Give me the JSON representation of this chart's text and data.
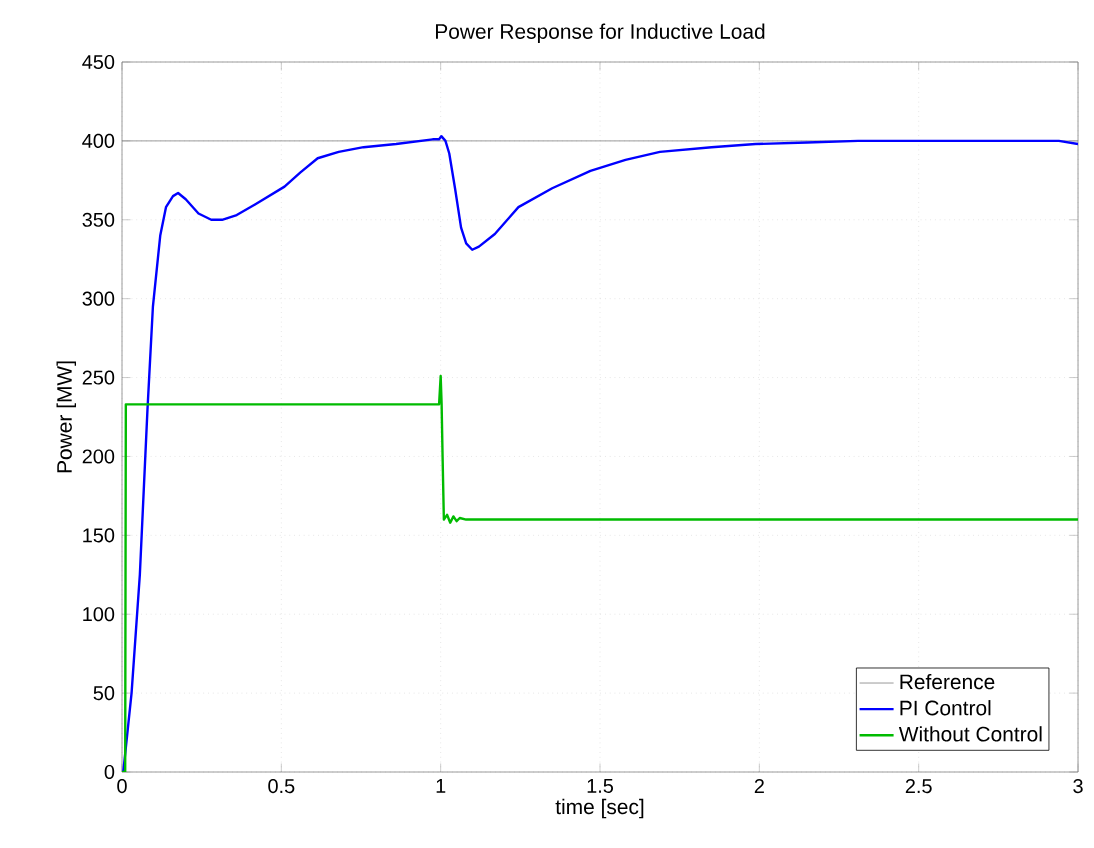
{
  "chart_data": {
    "type": "line",
    "title": "Power Response for Inductive Load",
    "xlabel": "time [sec]",
    "ylabel": "Power [MW]",
    "xlim": [
      0,
      3
    ],
    "xticks": [
      0,
      0.5,
      1,
      1.5,
      2,
      2.5,
      3
    ],
    "ylim": [
      0,
      450
    ],
    "yticks": [
      0,
      50,
      100,
      150,
      200,
      250,
      300,
      350,
      400,
      450
    ],
    "grid": true,
    "legend": "bottom right",
    "marker": "none",
    "line_style": "solid",
    "series": [
      {
        "name": "Reference",
        "color": "#808080",
        "x": [
          0,
          3
        ],
        "values": [
          400,
          400
        ]
      },
      {
        "name": "PI Control",
        "color": "#0000ff",
        "x": [
          0,
          0.004,
          0.03,
          0.056,
          0.08,
          0.097,
          0.12,
          0.138,
          0.16,
          0.176,
          0.2,
          0.24,
          0.28,
          0.314,
          0.36,
          0.42,
          0.51,
          0.56,
          0.614,
          0.68,
          0.758,
          0.86,
          0.975,
          0.995,
          1.002,
          1.015,
          1.027,
          1.045,
          1.064,
          1.08,
          1.099,
          1.12,
          1.17,
          1.244,
          1.35,
          1.47,
          1.58,
          1.688,
          1.85,
          1.988,
          2.15,
          2.31,
          2.53,
          2.75,
          2.94,
          3
        ],
        "values": [
          0,
          0,
          50,
          125,
          230,
          295,
          340,
          358,
          365,
          367,
          363,
          354,
          350,
          350,
          353,
          360,
          371,
          380,
          389,
          393,
          396,
          398,
          401,
          401,
          403,
          400,
          392,
          370,
          345,
          335,
          331,
          333,
          341,
          358,
          370,
          381,
          388,
          393,
          396,
          398,
          399,
          400,
          400,
          400,
          400,
          398
        ]
      },
      {
        "name": "Without Control",
        "color": "#00bb00",
        "x": [
          0,
          0.01,
          0.012,
          0.995,
          1.0,
          1.003,
          1.006,
          1.01,
          1.02,
          1.03,
          1.04,
          1.05,
          1.06,
          1.08,
          3
        ],
        "values": [
          0,
          0,
          233,
          233,
          251,
          233,
          200,
          160,
          163,
          158,
          162,
          159,
          161,
          160,
          160
        ]
      }
    ]
  }
}
